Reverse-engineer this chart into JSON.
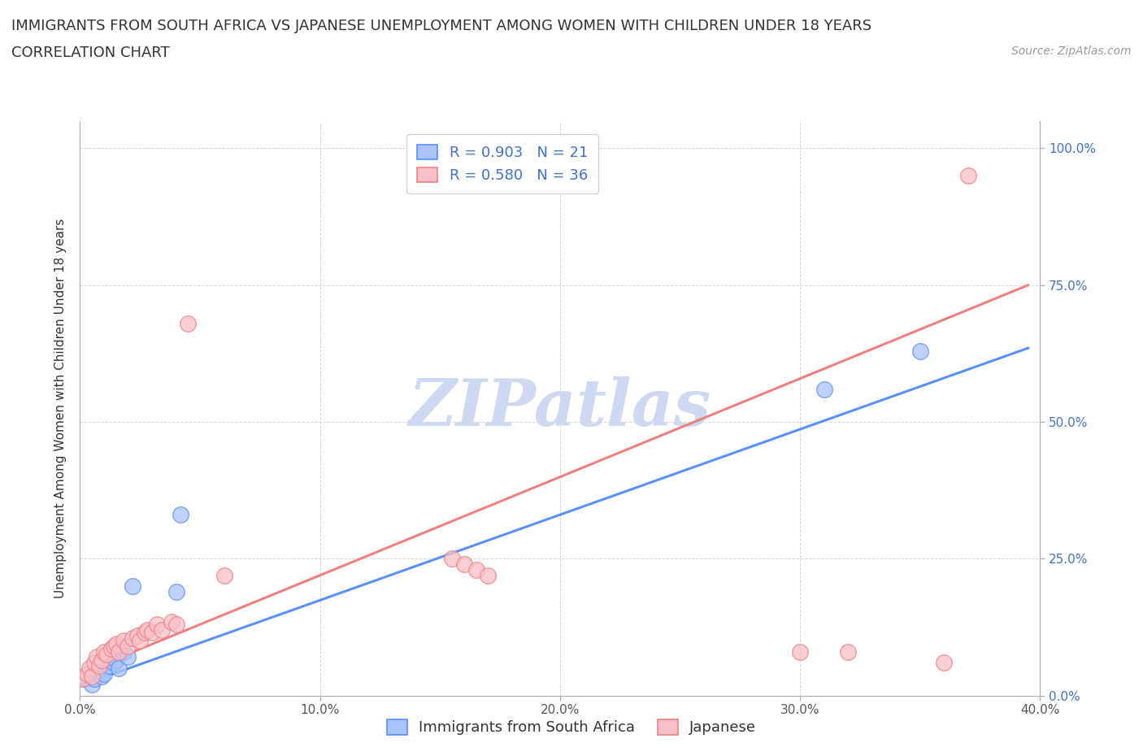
{
  "title_line1": "IMMIGRANTS FROM SOUTH AFRICA VS JAPANESE UNEMPLOYMENT AMONG WOMEN WITH CHILDREN UNDER 18 YEARS",
  "title_line2": "CORRELATION CHART",
  "source_text": "Source: ZipAtlas.com",
  "ylabel": "Unemployment Among Women with Children Under 18 years",
  "xlim": [
    0.0,
    0.4
  ],
  "ylim": [
    0.0,
    1.05
  ],
  "xtick_labels": [
    "0.0%",
    "10.0%",
    "20.0%",
    "30.0%",
    "40.0%"
  ],
  "xtick_values": [
    0.0,
    0.1,
    0.2,
    0.3,
    0.4
  ],
  "ytick_labels": [
    "0.0%",
    "25.0%",
    "50.0%",
    "75.0%",
    "100.0%"
  ],
  "ytick_values": [
    0.0,
    0.25,
    0.5,
    0.75,
    1.0
  ],
  "background_color": "#ffffff",
  "grid_color": "#cccccc",
  "watermark_text": "ZIPatlas",
  "watermark_color": "#ccd9f0",
  "blue_scatter_x": [
    0.002,
    0.004,
    0.005,
    0.006,
    0.007,
    0.008,
    0.009,
    0.01,
    0.011,
    0.012,
    0.013,
    0.014,
    0.015,
    0.016,
    0.018,
    0.02,
    0.022,
    0.04,
    0.042,
    0.31,
    0.35
  ],
  "blue_scatter_y": [
    0.03,
    0.04,
    0.02,
    0.03,
    0.045,
    0.05,
    0.035,
    0.04,
    0.06,
    0.055,
    0.07,
    0.06,
    0.065,
    0.05,
    0.08,
    0.07,
    0.2,
    0.19,
    0.33,
    0.56,
    0.63
  ],
  "pink_scatter_x": [
    0.001,
    0.003,
    0.004,
    0.005,
    0.006,
    0.007,
    0.008,
    0.009,
    0.01,
    0.011,
    0.013,
    0.014,
    0.015,
    0.016,
    0.018,
    0.02,
    0.022,
    0.024,
    0.025,
    0.027,
    0.028,
    0.03,
    0.032,
    0.034,
    0.038,
    0.04,
    0.045,
    0.06,
    0.155,
    0.16,
    0.165,
    0.17,
    0.3,
    0.32,
    0.36,
    0.37
  ],
  "pink_scatter_y": [
    0.03,
    0.04,
    0.05,
    0.035,
    0.06,
    0.07,
    0.055,
    0.065,
    0.08,
    0.075,
    0.085,
    0.09,
    0.095,
    0.08,
    0.1,
    0.09,
    0.105,
    0.11,
    0.1,
    0.115,
    0.12,
    0.115,
    0.13,
    0.12,
    0.135,
    0.13,
    0.68,
    0.22,
    0.25,
    0.24,
    0.23,
    0.22,
    0.08,
    0.08,
    0.06,
    0.95
  ],
  "blue_line_x": [
    0.0,
    0.395
  ],
  "blue_line_y": [
    0.018,
    0.635
  ],
  "blue_color": "#5b8ff9",
  "blue_fill_color": "#a8c4fb",
  "pink_line_x": [
    0.0,
    0.395
  ],
  "pink_line_y": [
    0.04,
    0.75
  ],
  "pink_color": "#f08080",
  "pink_fill_color": "#f8c0c8",
  "right_tick_color": "#4472c4",
  "R_blue": "0.903",
  "N_blue": "21",
  "R_pink": "0.580",
  "N_pink": "36",
  "legend_label_blue": "Immigrants from South Africa",
  "legend_label_pink": "Japanese",
  "title_fontsize": 13,
  "subtitle_fontsize": 13,
  "axis_label_fontsize": 11,
  "tick_fontsize": 11,
  "legend_fontsize": 13,
  "source_fontsize": 10
}
